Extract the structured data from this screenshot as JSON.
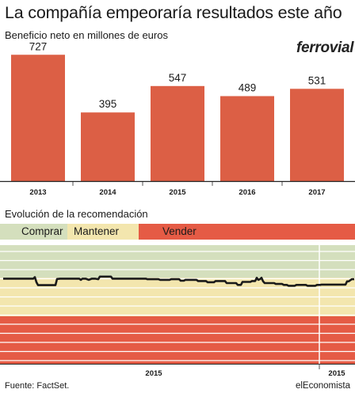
{
  "title": "La compañía empeoraría resultados este año",
  "logo_text": "ferrovial",
  "colors": {
    "bar": "#dc5f45",
    "comprar": "#d4dfbd",
    "mantener": "#f3e6ae",
    "vender": "#e55b45",
    "line": "#1a1a1a"
  },
  "chart_data": [
    {
      "type": "bar",
      "title": "Beneficio neto en millones de euros",
      "categories": [
        "2013",
        "2014",
        "2015",
        "2016",
        "2017"
      ],
      "values": [
        727,
        395,
        547,
        489,
        531
      ],
      "value_labels": [
        "727",
        "395",
        "547",
        "489",
        "531"
      ],
      "ylim": [
        0,
        760
      ],
      "grid": false
    },
    {
      "type": "line",
      "title": "Evolución de la recomendación",
      "legend": [
        {
          "label": "Comprar",
          "color": "#d4dfbd"
        },
        {
          "label": "Mantener",
          "color": "#f3e6ae"
        },
        {
          "label": "Vender",
          "color": "#e55b45"
        }
      ],
      "x_tick_labels": [
        "2015",
        "2015"
      ],
      "ylim": [
        1,
        5
      ],
      "zones": [
        {
          "name": "Comprar",
          "from": 3.9,
          "to": 5
        },
        {
          "name": "Mantener",
          "from": 2.6,
          "to": 3.9
        },
        {
          "name": "Vender",
          "from": 1,
          "to": 2.6
        }
      ],
      "series": [
        {
          "x": [
            0,
            38,
            40,
            42,
            44,
            66,
            68,
            72,
            96,
            98,
            100,
            104,
            108,
            112,
            116,
            120,
            122,
            136,
            138,
            180,
            182,
            196,
            198,
            210,
            212,
            222,
            224,
            228,
            230,
            244,
            246,
            256,
            258,
            266,
            268,
            280,
            282,
            294,
            296,
            300,
            302,
            312,
            314,
            318,
            320,
            322,
            324,
            326,
            328,
            330,
            342,
            344,
            352,
            354,
            358,
            360,
            368,
            370,
            382,
            384,
            394,
            396,
            400,
            402,
            432,
            434,
            436,
            440,
            443
          ],
          "y": [
            3.87,
            3.87,
            3.92,
            3.75,
            3.65,
            3.65,
            3.86,
            3.87,
            3.87,
            3.83,
            3.87,
            3.87,
            3.83,
            3.87,
            3.87,
            3.85,
            3.94,
            3.94,
            3.87,
            3.87,
            3.85,
            3.85,
            3.83,
            3.83,
            3.85,
            3.85,
            3.8,
            3.8,
            3.83,
            3.83,
            3.79,
            3.79,
            3.75,
            3.75,
            3.79,
            3.79,
            3.72,
            3.72,
            3.66,
            3.66,
            3.76,
            3.76,
            3.79,
            3.79,
            3.9,
            3.83,
            3.85,
            3.9,
            3.78,
            3.72,
            3.72,
            3.69,
            3.69,
            3.66,
            3.66,
            3.63,
            3.63,
            3.66,
            3.66,
            3.63,
            3.63,
            3.66,
            3.66,
            3.67,
            3.67,
            3.78,
            3.78,
            3.85,
            3.85
          ]
        }
      ],
      "grid": true
    }
  ],
  "source": "Fuente: FactSet.",
  "brand": "elEconomista"
}
